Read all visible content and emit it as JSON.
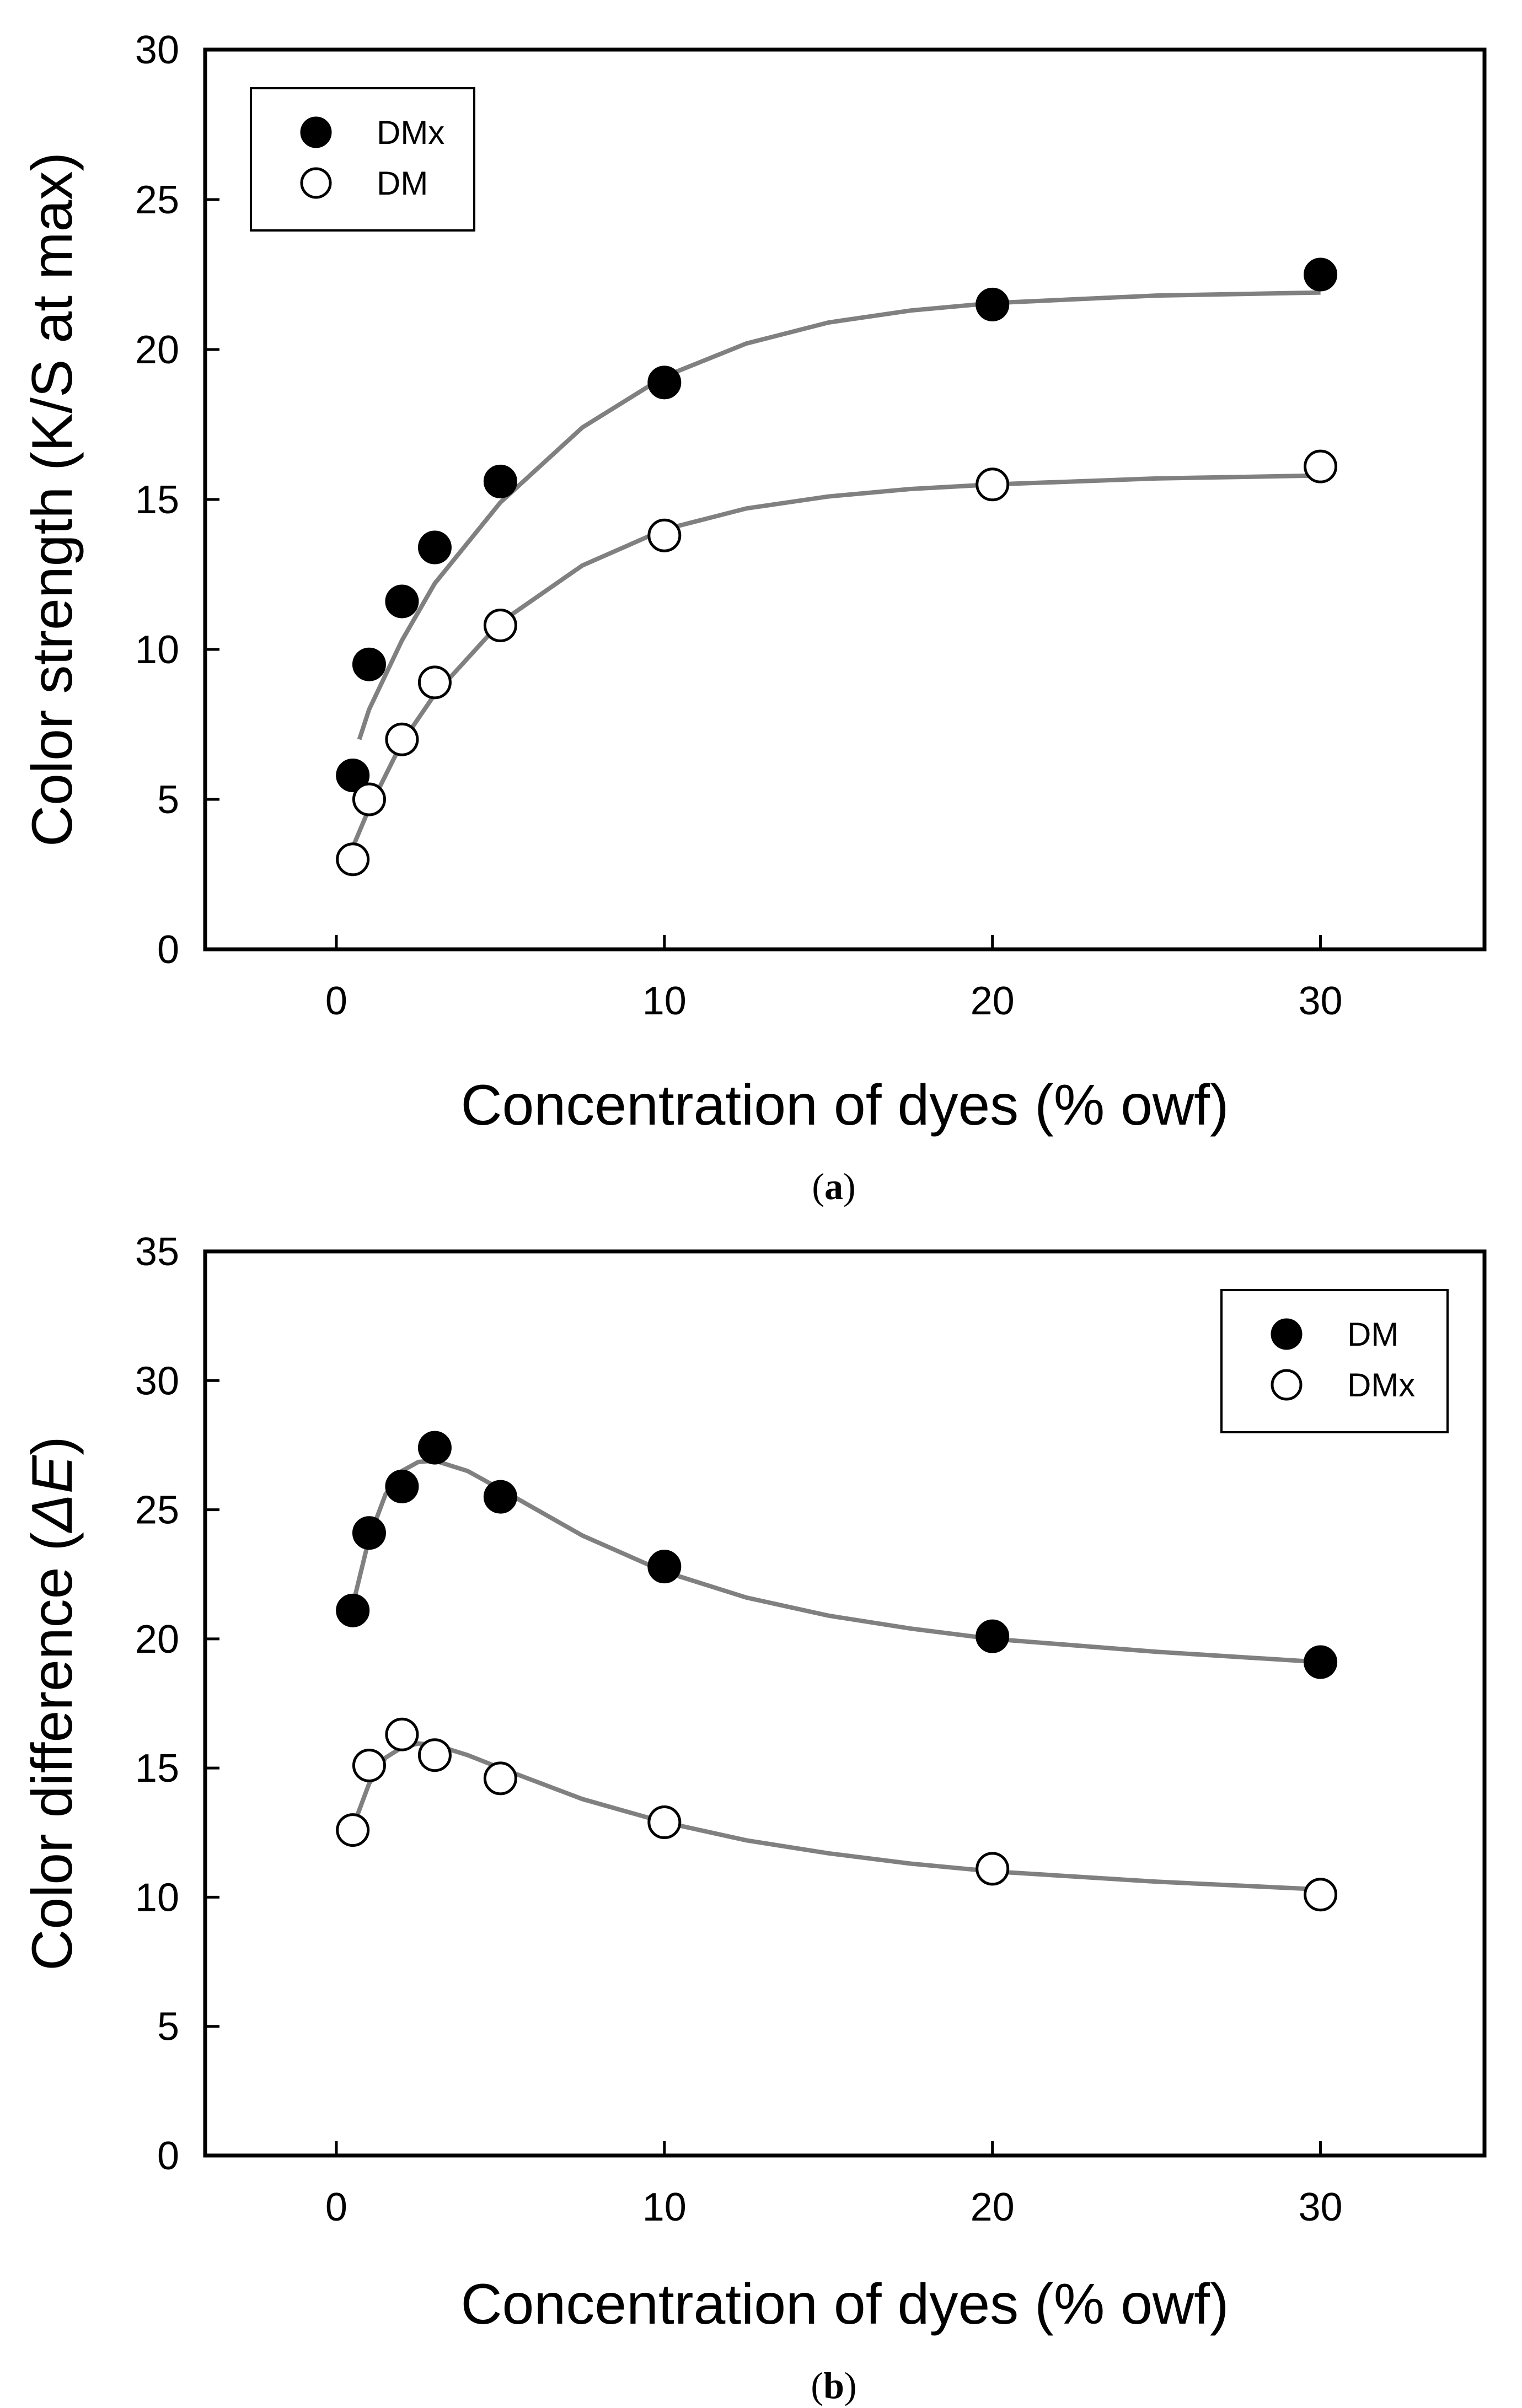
{
  "chart_data": [
    {
      "type": "scatter",
      "panel_caption": "a",
      "xlabel": "Concentration of dyes (% owf)",
      "ylabel": "Color strength (K/S at max)",
      "xlim": [
        -4,
        35
      ],
      "ylim": [
        0,
        30
      ],
      "xticks": [
        0,
        10,
        20,
        30
      ],
      "yticks": [
        0,
        5,
        10,
        15,
        20,
        25,
        30
      ],
      "grid": false,
      "legend_position": "top-left",
      "series": [
        {
          "name": "DMx",
          "marker": "filled",
          "points": [
            [
              0.5,
              5.8
            ],
            [
              1,
              9.5
            ],
            [
              2,
              11.6
            ],
            [
              3,
              13.4
            ],
            [
              5,
              15.6
            ],
            [
              10,
              18.9
            ],
            [
              20,
              21.5
            ],
            [
              30,
              22.5
            ]
          ],
          "fit": [
            [
              0.7,
              7.0
            ],
            [
              1,
              8.0
            ],
            [
              2,
              10.3
            ],
            [
              3,
              12.2
            ],
            [
              5,
              14.9
            ],
            [
              7.5,
              17.4
            ],
            [
              10,
              19.1
            ],
            [
              12.5,
              20.2
            ],
            [
              15,
              20.9
            ],
            [
              17.5,
              21.3
            ],
            [
              20,
              21.55
            ],
            [
              25,
              21.8
            ],
            [
              30,
              21.9
            ]
          ]
        },
        {
          "name": "DM",
          "marker": "open",
          "points": [
            [
              0.5,
              3.0
            ],
            [
              1,
              5.0
            ],
            [
              2,
              7.0
            ],
            [
              3,
              8.9
            ],
            [
              5,
              10.8
            ],
            [
              10,
              13.8
            ],
            [
              20,
              15.5
            ],
            [
              30,
              16.1
            ]
          ],
          "fit": [
            [
              0.5,
              3.4
            ],
            [
              1,
              4.7
            ],
            [
              2,
              6.9
            ],
            [
              3,
              8.5
            ],
            [
              5,
              10.9
            ],
            [
              7.5,
              12.8
            ],
            [
              10,
              14.0
            ],
            [
              12.5,
              14.7
            ],
            [
              15,
              15.1
            ],
            [
              17.5,
              15.35
            ],
            [
              20,
              15.5
            ],
            [
              25,
              15.7
            ],
            [
              30,
              15.8
            ]
          ]
        }
      ]
    },
    {
      "type": "scatter",
      "panel_caption": "b",
      "xlabel": "Concentration of dyes (% owf)",
      "ylabel_prefix": "Color difference (",
      "ylabel_symbol": "ΔE",
      "ylabel_suffix": ")",
      "xlim": [
        -4,
        35
      ],
      "ylim": [
        0,
        35
      ],
      "xticks": [
        0,
        10,
        20,
        30
      ],
      "yticks": [
        0,
        5,
        10,
        15,
        20,
        25,
        30,
        35
      ],
      "grid": false,
      "legend_position": "top-right",
      "series": [
        {
          "name": "DM",
          "marker": "filled",
          "points": [
            [
              0.5,
              21.1
            ],
            [
              1,
              24.1
            ],
            [
              2,
              25.9
            ],
            [
              3,
              27.4
            ],
            [
              5,
              25.5
            ],
            [
              10,
              22.8
            ],
            [
              20,
              20.1
            ],
            [
              30,
              19.1
            ]
          ],
          "fit": [
            [
              0.5,
              21.3
            ],
            [
              1,
              23.9
            ],
            [
              1.5,
              25.6
            ],
            [
              2,
              26.5
            ],
            [
              2.5,
              26.85
            ],
            [
              3,
              26.9
            ],
            [
              4,
              26.5
            ],
            [
              5,
              25.8
            ],
            [
              7.5,
              24.0
            ],
            [
              10,
              22.6
            ],
            [
              12.5,
              21.6
            ],
            [
              15,
              20.9
            ],
            [
              17.5,
              20.4
            ],
            [
              20,
              20.0
            ],
            [
              25,
              19.5
            ],
            [
              30,
              19.1
            ]
          ]
        },
        {
          "name": "DMx",
          "marker": "open",
          "points": [
            [
              0.5,
              12.6
            ],
            [
              1,
              15.1
            ],
            [
              2,
              16.3
            ],
            [
              3,
              15.5
            ],
            [
              5,
              14.6
            ],
            [
              10,
              12.9
            ],
            [
              20,
              11.1
            ],
            [
              30,
              10.1
            ]
          ],
          "fit": [
            [
              0.5,
              12.7
            ],
            [
              1,
              14.4
            ],
            [
              1.5,
              15.4
            ],
            [
              2,
              15.8
            ],
            [
              2.5,
              15.95
            ],
            [
              3,
              15.9
            ],
            [
              4,
              15.5
            ],
            [
              5,
              15.0
            ],
            [
              7.5,
              13.8
            ],
            [
              10,
              12.9
            ],
            [
              12.5,
              12.2
            ],
            [
              15,
              11.7
            ],
            [
              17.5,
              11.3
            ],
            [
              20,
              11.0
            ],
            [
              25,
              10.6
            ],
            [
              30,
              10.3
            ]
          ]
        }
      ]
    }
  ]
}
